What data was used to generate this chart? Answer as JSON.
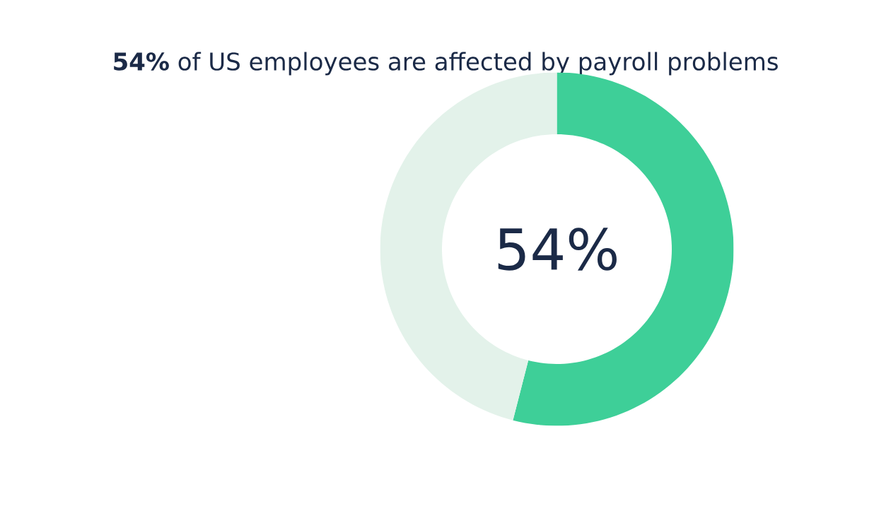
{
  "chart_data": {
    "type": "donut",
    "title": "**54%** of US employees are affected by payroll problems",
    "categories": [
      null,
      null
    ],
    "values": [
      54,
      46
    ],
    "colors": [
      "#3ecf98",
      "#e3f2ea"
    ],
    "annotations": [
      "54%"
    ]
  }
}
